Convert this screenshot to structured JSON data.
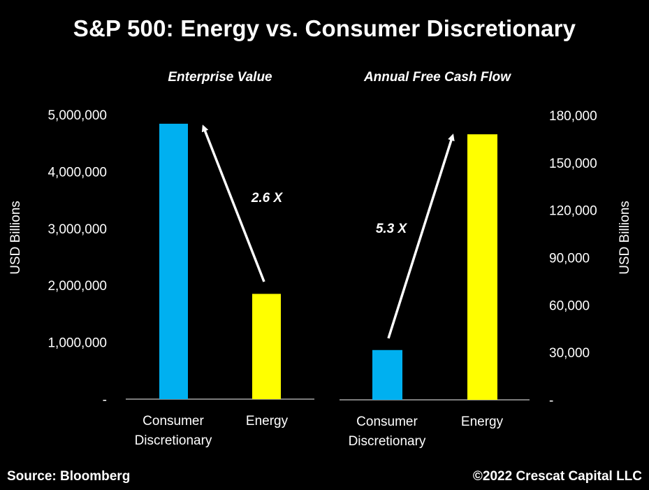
{
  "title": "S&P 500: Energy vs. Consumer Discretionary",
  "footer": {
    "source": "Source: Bloomberg",
    "copyright": "©2022 Crescat Capital LLC"
  },
  "colors": {
    "background": "#000000",
    "consumer_discretionary": "#00b0f0",
    "energy": "#ffff00",
    "text": "#ffffff"
  },
  "chart_data": [
    {
      "type": "bar",
      "title": "Enterprise Value",
      "ylabel": "USD Billions",
      "categories": [
        "Consumer Discretionary",
        "Energy"
      ],
      "category_lines": [
        [
          "Consumer",
          "Discretionary"
        ],
        [
          "Energy"
        ]
      ],
      "values": [
        4840000,
        1850000
      ],
      "ylim": [
        0,
        5000000
      ],
      "yticks": [
        0,
        1000000,
        2000000,
        3000000,
        4000000,
        5000000
      ],
      "ytick_labels": [
        "-",
        "1,000,000",
        "2,000,000",
        "3,000,000",
        "4,000,000",
        "5,000,000"
      ],
      "axis_side": "left",
      "annotation": {
        "text": "2.6 X",
        "arrow_from": "Energy",
        "arrow_to": "Consumer Discretionary"
      }
    },
    {
      "type": "bar",
      "title": "Annual Free Cash Flow",
      "ylabel": "USD Billions",
      "categories": [
        "Consumer Discretionary",
        "Energy"
      ],
      "category_lines": [
        [
          "Consumer",
          "Discretionary"
        ],
        [
          "Energy"
        ]
      ],
      "values": [
        31500,
        168000
      ],
      "ylim": [
        0,
        180000
      ],
      "yticks": [
        0,
        30000,
        60000,
        90000,
        120000,
        150000,
        180000
      ],
      "ytick_labels": [
        "-",
        "30,000",
        "60,000",
        "90,000",
        "120,000",
        "150,000",
        "180,000"
      ],
      "axis_side": "right",
      "annotation": {
        "text": "5.3 X",
        "arrow_from": "Consumer Discretionary",
        "arrow_to": "Energy"
      }
    }
  ]
}
